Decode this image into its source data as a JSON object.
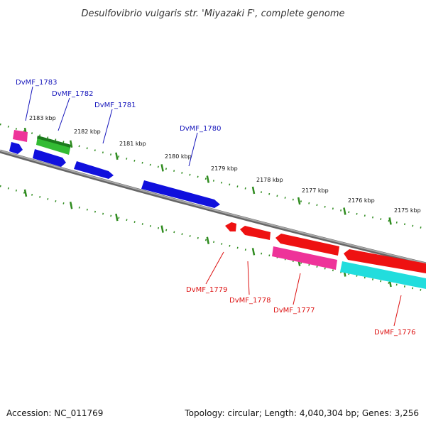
{
  "title": "Desulfovibrio vulgaris str. 'Miyazaki F', complete genome",
  "footer": {
    "accession": "Accession: NC_011769",
    "summary": "Topology: circular; Length: 4,040,304 bp; Genes: 3,256"
  },
  "ticks": [
    "2183 kbp",
    "2182 kbp",
    "2181 kbp",
    "2180 kbp",
    "2179 kbp",
    "2178 kbp",
    "2177 kbp",
    "2176 kbp",
    "2175 kbp"
  ],
  "genes_top": [
    "DvMF_1783",
    "DvMF_1782",
    "DvMF_1781",
    "DvMF_1780"
  ],
  "genes_bottom": [
    "DvMF_1779",
    "DvMF_1778",
    "DvMF_1777",
    "DvMF_1776"
  ],
  "colors": {
    "backbone": "#888888",
    "ruler": "#2e8b1e",
    "forward_cds": "#1010dd",
    "reverse_cds": "#ee1111",
    "magenta": "#ee3399",
    "green": "#33bb33",
    "cyan": "#22dddd",
    "top_label": "#1515bb",
    "bottom_label": "#dd1111"
  }
}
